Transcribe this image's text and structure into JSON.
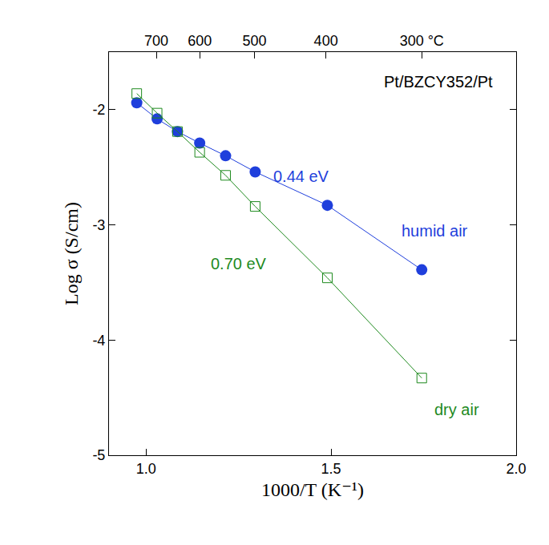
{
  "chart_data": {
    "type": "scatter",
    "x_label": "1000/T (K⁻¹)",
    "y_label": "Log σ (S/cm)",
    "xlim": [
      0.9,
      2.0
    ],
    "xticks": [
      {
        "value": 1.0,
        "label": "1.0"
      },
      {
        "value": 1.5,
        "label": "1.5"
      },
      {
        "value": 2.0,
        "label": "2.0"
      }
    ],
    "x2lim": [
      0.9,
      2.0
    ],
    "x2ticks": [
      {
        "value": 1.028,
        "label": "700"
      },
      {
        "value": 1.145,
        "label": "600"
      },
      {
        "value": 1.293,
        "label": "500"
      },
      {
        "value": 1.486,
        "label": "400"
      },
      {
        "value": 1.745,
        "label": "300 °C"
      }
    ],
    "ylim": [
      -5,
      -1.5
    ],
    "yticks": [
      -5,
      -4,
      -3,
      -2
    ],
    "grid": false,
    "series": [
      {
        "name": "humid air",
        "color": "#1f3fdc",
        "marker": "circle",
        "line_style": "solid",
        "x": [
          0.975,
          1.03,
          1.085,
          1.145,
          1.215,
          1.295,
          1.49,
          1.745
        ],
        "values": [
          -1.94,
          -2.08,
          -2.19,
          -2.29,
          -2.4,
          -2.54,
          -2.83,
          -3.39
        ]
      },
      {
        "name": "dry air",
        "color": "#1e8a1e",
        "marker": "square-open",
        "line_style": "solid",
        "x": [
          0.975,
          1.03,
          1.085,
          1.145,
          1.215,
          1.295,
          1.49,
          1.745
        ],
        "values": [
          -1.86,
          -2.03,
          -2.19,
          -2.37,
          -2.57,
          -2.84,
          -3.46,
          -4.33
        ]
      }
    ],
    "annotations": [
      {
        "text": "Pt/BZCY352/Pt",
        "x": 1.79,
        "y": -1.76,
        "color": "#000000"
      },
      {
        "text": "0.44 eV",
        "x": 1.42,
        "y": -2.58,
        "color": "#1f3fdc"
      },
      {
        "text": "humid air",
        "x": 1.78,
        "y": -3.05,
        "color": "#1f3fdc"
      },
      {
        "text": "0.70 eV",
        "x": 1.25,
        "y": -3.34,
        "color": "#1e8a1e"
      },
      {
        "text": "dry air",
        "x": 1.84,
        "y": -4.6,
        "color": "#1e8a1e"
      }
    ]
  }
}
